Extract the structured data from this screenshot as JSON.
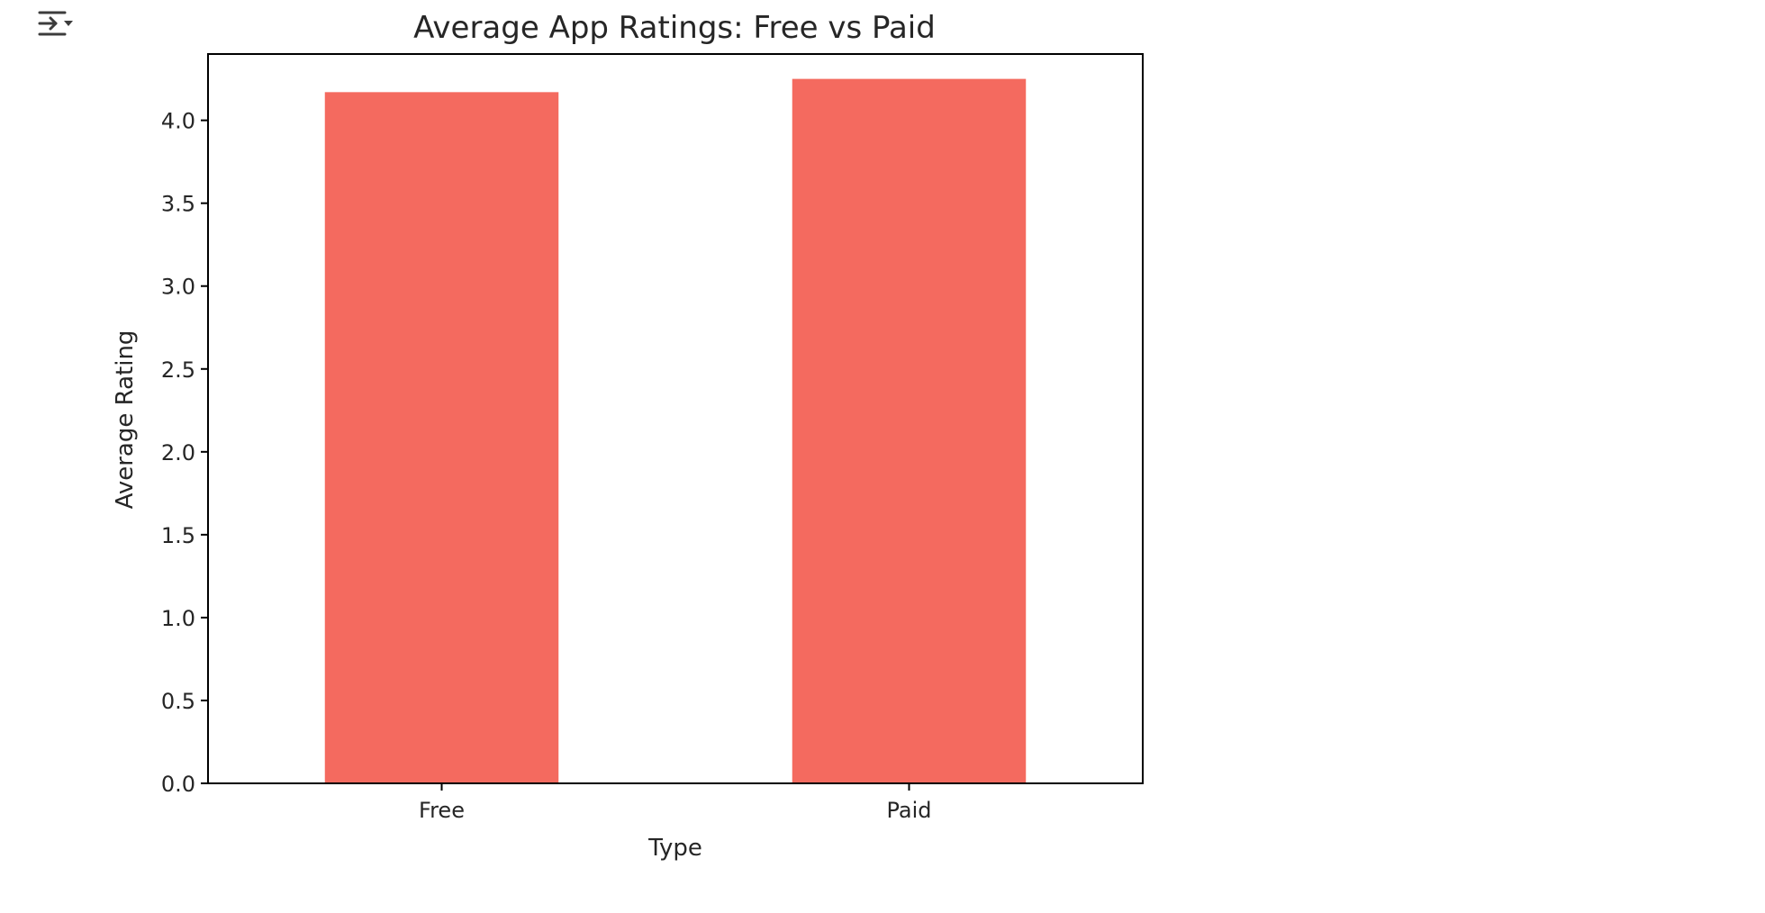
{
  "cell": {
    "output_toggle_icon": "output-collapse-icon"
  },
  "chart_data": {
    "type": "bar",
    "title": "Average App Ratings: Free vs Paid",
    "xlabel": "Type",
    "ylabel": "Average Rating",
    "categories": [
      "Free",
      "Paid"
    ],
    "values": [
      4.17,
      4.25
    ],
    "ylim": [
      0,
      4.4
    ],
    "yticks": [
      "0.0",
      "0.5",
      "1.0",
      "1.5",
      "2.0",
      "2.5",
      "3.0",
      "3.5",
      "4.0"
    ],
    "bar_color": "#f46a5f",
    "grid": false,
    "legend": "none"
  }
}
